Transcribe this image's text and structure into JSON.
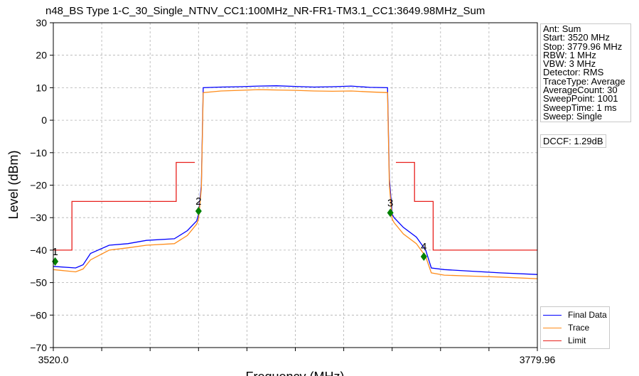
{
  "chart_data": {
    "type": "line",
    "title": "n48_BS Type 1-C_30_Single_NTNV_CC1:100MHz_NR-FR1-TM3.1_CC1:3649.98MHz_Sum",
    "xlabel": "Frequency (MHz)",
    "ylabel": "Level (dBm)",
    "xlim": [
      3520.0,
      3779.96
    ],
    "ylim": [
      -70,
      30
    ],
    "x_tick_labels": [
      "3520.0",
      "3779.96"
    ],
    "y_ticks": [
      30,
      20,
      10,
      0,
      -10,
      -20,
      -30,
      -40,
      -50,
      -60,
      -70
    ],
    "y_tick_labels": [
      "30",
      "20",
      "10",
      "0",
      "−10",
      "−20",
      "−30",
      "−40",
      "−50",
      "−60",
      "−70"
    ],
    "grid": true,
    "legend_position": "bottom-right",
    "series": [
      {
        "name": "Final Data",
        "color": "#0000ff",
        "x": [
          3520.0,
          3532.0,
          3536.0,
          3540.0,
          3550.0,
          3560.0,
          3570.0,
          3585.0,
          3592.0,
          3597.0,
          3598.0,
          3599.5,
          3600.5,
          3610.0,
          3620.0,
          3630.0,
          3640.0,
          3650.0,
          3660.0,
          3670.0,
          3680.0,
          3690.0,
          3699.5,
          3700.5,
          3702.0,
          3703.0,
          3708.0,
          3715.0,
          3720.0,
          3723.0,
          3730.0,
          3745.0,
          3760.0,
          3779.96
        ],
        "y": [
          -45,
          -45.5,
          -44.5,
          -41,
          -38.5,
          -38,
          -37,
          -36.5,
          -34,
          -31,
          -29,
          -20,
          10,
          10.2,
          10.3,
          10.5,
          10.6,
          10.4,
          10.2,
          10.3,
          10.5,
          10.1,
          10,
          -18,
          -29,
          -30,
          -33,
          -36,
          -40,
          -45.5,
          -46,
          -46.5,
          -47,
          -47.5
        ]
      },
      {
        "name": "Trace",
        "color": "#ff8c1a",
        "x": [
          3520.0,
          3532.0,
          3536.0,
          3540.0,
          3550.0,
          3560.0,
          3570.0,
          3585.0,
          3592.0,
          3597.0,
          3598.0,
          3599.5,
          3600.5,
          3610.0,
          3620.0,
          3630.0,
          3640.0,
          3650.0,
          3660.0,
          3670.0,
          3680.0,
          3690.0,
          3699.5,
          3700.5,
          3702.0,
          3703.0,
          3708.0,
          3715.0,
          3720.0,
          3723.0,
          3730.0,
          3745.0,
          3760.0,
          3779.96
        ],
        "y": [
          -46,
          -46.7,
          -45.8,
          -43,
          -40,
          -39.3,
          -38.5,
          -38,
          -35.5,
          -32,
          -30.5,
          -21,
          8.5,
          9,
          9.2,
          9.4,
          9.3,
          9.2,
          9,
          8.9,
          9,
          8.7,
          8.5,
          -20,
          -30.5,
          -31.5,
          -35,
          -38,
          -42,
          -47,
          -47.7,
          -48,
          -48.3,
          -48.8
        ]
      },
      {
        "name": "Limit",
        "color": "#e8201c",
        "x": [
          3520.0,
          3530.0,
          3530.0,
          3586.0,
          3586.0,
          3596.0,
          3596.0,
          null,
          3704.0,
          3704.0,
          3714.0,
          3714.0,
          3724.0,
          3724.0,
          3779.96
        ],
        "y": [
          -40,
          -40,
          -25,
          -25,
          -13,
          -13,
          null,
          null,
          null,
          -13,
          -13,
          -25,
          -25,
          -40,
          -40
        ]
      }
    ],
    "markers": [
      {
        "label": "1",
        "x": 3521.0,
        "y": -43.5
      },
      {
        "label": "2",
        "x": 3598.0,
        "y": -28.0
      },
      {
        "label": "3",
        "x": 3701.0,
        "y": -28.5
      },
      {
        "label": "4",
        "x": 3719.0,
        "y": -42.0
      }
    ]
  },
  "info_box": [
    "Ant: Sum",
    "Start: 3520 MHz",
    "Stop: 3779.96 MHz",
    "RBW: 1 MHz",
    "VBW: 3 MHz",
    "Detector: RMS",
    "TraceType: Average",
    "AverageCount: 30",
    "SweepPoint: 1001",
    "SweepTime: 1 ms",
    "Sweep: Single"
  ],
  "dccf": "DCCF: 1.29dB",
  "legend": {
    "items": [
      {
        "label": "Final Data",
        "color": "#0000ff"
      },
      {
        "label": "Trace",
        "color": "#ff8c1a"
      },
      {
        "label": "Limit",
        "color": "#e8201c"
      }
    ]
  },
  "colors": {
    "marker": "#008000",
    "grid": "#b0b0b0"
  }
}
